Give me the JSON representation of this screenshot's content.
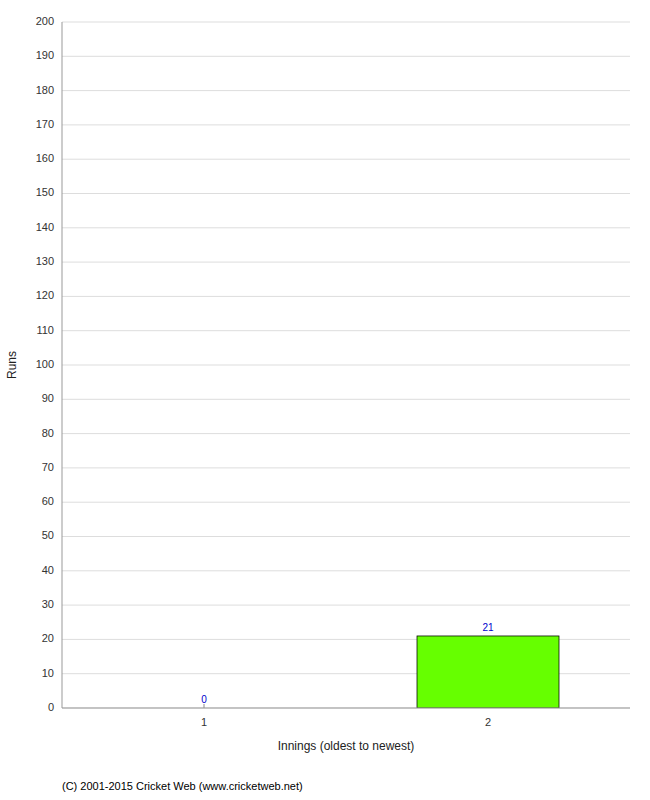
{
  "chart_data": {
    "type": "bar",
    "categories": [
      1,
      2
    ],
    "values": [
      0,
      21
    ],
    "colors": [
      "#ffffff",
      "#66ff00"
    ],
    "xlabel": "Innings (oldest to newest)",
    "ylabel": "Runs",
    "ylim": [
      0,
      200
    ],
    "yticks": [
      0,
      10,
      20,
      30,
      40,
      50,
      60,
      70,
      80,
      90,
      100,
      110,
      120,
      130,
      140,
      150,
      160,
      170,
      180,
      190,
      200
    ],
    "grid": true,
    "data_labels": true,
    "annotations": [
      "(C) 2001-2015 Cricket Web (www.cricketweb.net)"
    ]
  }
}
